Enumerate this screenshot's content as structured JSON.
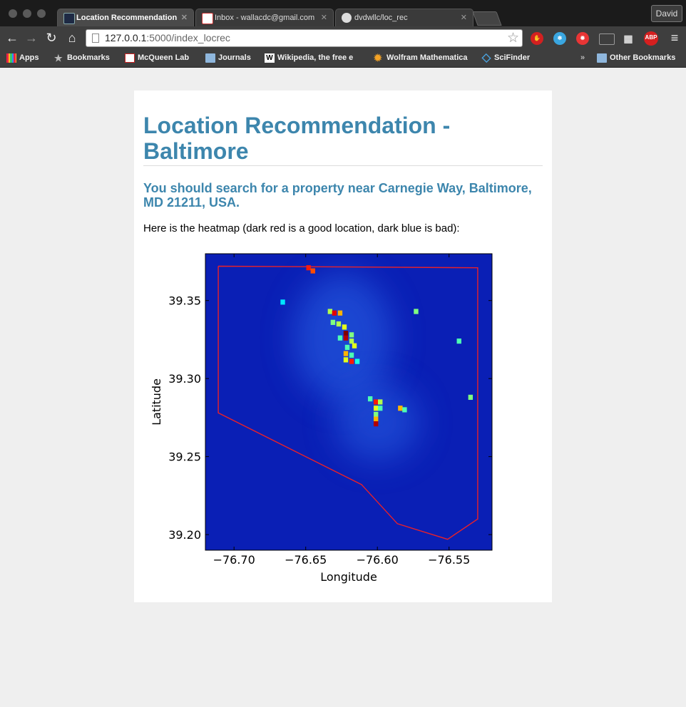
{
  "browser": {
    "tabs": [
      {
        "title": "Location Recommendation"
      },
      {
        "title": "Inbox - wallacdc@gmail.com"
      },
      {
        "title": "dvdwllc/loc_rec"
      }
    ],
    "tab_close": "✕",
    "user": "David",
    "url_host": "127.0.0.1",
    "url_path": ":5000/index_locrec",
    "bookmarks": {
      "apps": "Apps",
      "bookmarks": "Bookmarks",
      "mcqueen": "McQueen Lab",
      "journals": "Journals",
      "wikipedia": "Wikipedia, the free e",
      "wolfram": "Wolfram Mathematica",
      "scifinder": "SciFinder",
      "overflow": "»",
      "other": "Other Bookmarks"
    },
    "extensions": {
      "abp": "ABP"
    }
  },
  "page": {
    "title": "Location Recommendation - Baltimore",
    "subtitle": "You should search for a property near Carnegie Way, Baltimore, MD 21211, USA.",
    "description": "Here is the heatmap (dark red is a good location, dark blue is bad):"
  },
  "colors": {
    "accent": "#3d86ad",
    "heatmap_background": "#0a1fb5",
    "boundary": "#e8202a"
  },
  "chart_data": {
    "type": "heatmap",
    "xlabel": "Longitude",
    "ylabel": "Latitude",
    "xlim": [
      -76.72,
      -76.52
    ],
    "ylim": [
      39.19,
      39.38
    ],
    "xticks": [
      -76.7,
      -76.65,
      -76.6,
      -76.55
    ],
    "xtick_labels": [
      "−76.70",
      "−76.65",
      "−76.60",
      "−76.55"
    ],
    "yticks": [
      39.2,
      39.25,
      39.3,
      39.35
    ],
    "ytick_labels": [
      "39.20",
      "39.25",
      "39.30",
      "39.35"
    ],
    "colormap": "jet",
    "hotspots": [
      {
        "lon": -76.648,
        "lat": 39.371,
        "v": 0.85
      },
      {
        "lon": -76.645,
        "lat": 39.369,
        "v": 0.8
      },
      {
        "lon": -76.633,
        "lat": 39.343,
        "v": 0.55
      },
      {
        "lon": -76.63,
        "lat": 39.342,
        "v": 0.9
      },
      {
        "lon": -76.626,
        "lat": 39.342,
        "v": 0.7
      },
      {
        "lon": -76.631,
        "lat": 39.336,
        "v": 0.5
      },
      {
        "lon": -76.627,
        "lat": 39.335,
        "v": 0.55
      },
      {
        "lon": -76.623,
        "lat": 39.333,
        "v": 0.6
      },
      {
        "lon": -76.622,
        "lat": 39.329,
        "v": 1.0
      },
      {
        "lon": -76.622,
        "lat": 39.326,
        "v": 0.95
      },
      {
        "lon": -76.618,
        "lat": 39.328,
        "v": 0.5
      },
      {
        "lon": -76.626,
        "lat": 39.326,
        "v": 0.45
      },
      {
        "lon": -76.618,
        "lat": 39.324,
        "v": 0.55
      },
      {
        "lon": -76.616,
        "lat": 39.321,
        "v": 0.6
      },
      {
        "lon": -76.621,
        "lat": 39.32,
        "v": 0.45
      },
      {
        "lon": -76.622,
        "lat": 39.316,
        "v": 0.7
      },
      {
        "lon": -76.618,
        "lat": 39.315,
        "v": 0.45
      },
      {
        "lon": -76.622,
        "lat": 39.312,
        "v": 0.6
      },
      {
        "lon": -76.618,
        "lat": 39.311,
        "v": 0.85
      },
      {
        "lon": -76.614,
        "lat": 39.311,
        "v": 0.4
      },
      {
        "lon": -76.605,
        "lat": 39.287,
        "v": 0.45
      },
      {
        "lon": -76.601,
        "lat": 39.285,
        "v": 0.85
      },
      {
        "lon": -76.598,
        "lat": 39.285,
        "v": 0.55
      },
      {
        "lon": -76.601,
        "lat": 39.281,
        "v": 0.6
      },
      {
        "lon": -76.598,
        "lat": 39.281,
        "v": 0.45
      },
      {
        "lon": -76.601,
        "lat": 39.277,
        "v": 0.5
      },
      {
        "lon": -76.601,
        "lat": 39.274,
        "v": 0.7
      },
      {
        "lon": -76.601,
        "lat": 39.271,
        "v": 0.95
      },
      {
        "lon": -76.584,
        "lat": 39.281,
        "v": 0.7
      },
      {
        "lon": -76.581,
        "lat": 39.28,
        "v": 0.45
      },
      {
        "lon": -76.573,
        "lat": 39.343,
        "v": 0.5
      },
      {
        "lon": -76.543,
        "lat": 39.324,
        "v": 0.45
      },
      {
        "lon": -76.535,
        "lat": 39.288,
        "v": 0.5
      },
      {
        "lon": -76.666,
        "lat": 39.349,
        "v": 0.35
      }
    ],
    "boundary": [
      [
        -76.711,
        39.372
      ],
      [
        -76.53,
        39.371
      ],
      [
        -76.53,
        39.21
      ],
      [
        -76.551,
        39.197
      ],
      [
        -76.586,
        39.207
      ],
      [
        -76.611,
        39.232
      ],
      [
        -76.711,
        39.278
      ],
      [
        -76.711,
        39.372
      ]
    ]
  }
}
